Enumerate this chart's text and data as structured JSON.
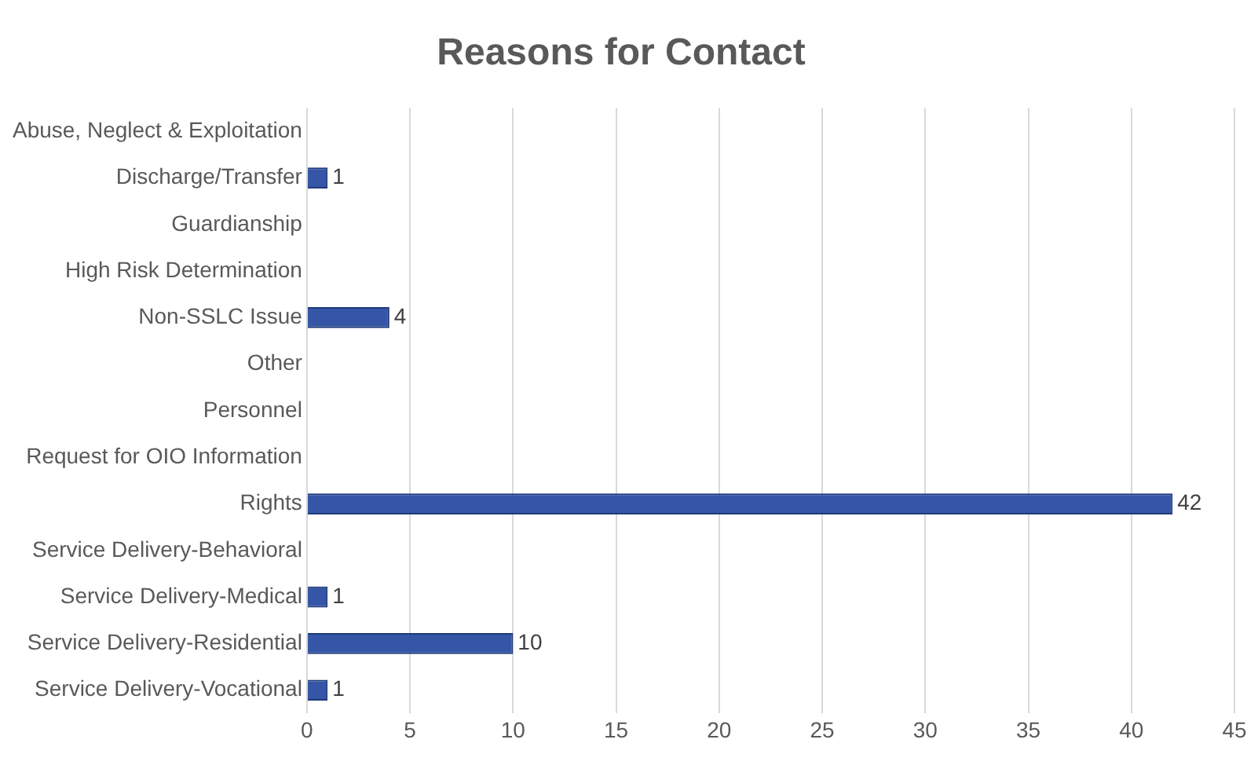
{
  "chart_data": {
    "type": "bar",
    "orientation": "horizontal",
    "title": "Reasons for Contact",
    "categories": [
      "Abuse, Neglect & Exploitation",
      "Discharge/Transfer",
      "Guardianship",
      "High Risk Determination",
      "Non-SSLC Issue",
      "Other",
      "Personnel",
      "Request for OIO Information",
      "Rights",
      "Service Delivery-Behavioral",
      "Service Delivery-Medical",
      "Service Delivery-Residential",
      "Service Delivery-Vocational"
    ],
    "values": [
      0,
      1,
      0,
      0,
      4,
      0,
      0,
      0,
      42,
      0,
      1,
      10,
      1
    ],
    "value_labels": [
      null,
      "1",
      null,
      null,
      "4",
      null,
      null,
      null,
      "42",
      null,
      "1",
      "10",
      "1"
    ],
    "color": "#3556a6",
    "xlim": [
      0,
      45
    ],
    "xticks": [
      0,
      5,
      10,
      15,
      20,
      25,
      30,
      35,
      40,
      45
    ],
    "grid": "x",
    "legend": false
  }
}
